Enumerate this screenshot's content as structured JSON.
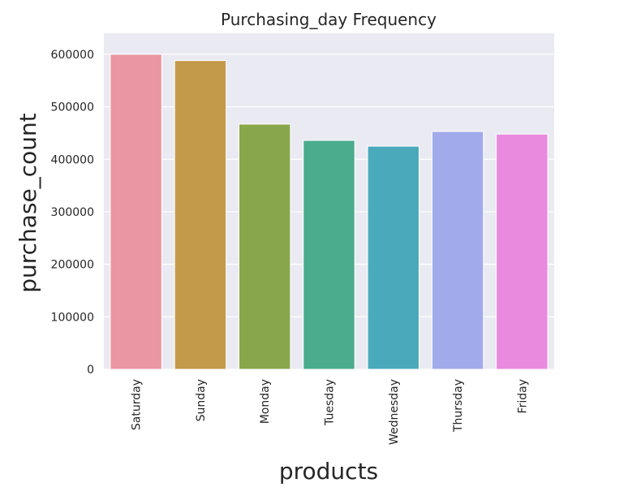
{
  "chart_data": {
    "type": "bar",
    "title": "Purchasing_day Frequency",
    "xlabel": "products",
    "ylabel": "purchase_count",
    "categories": [
      "Saturday",
      "Sunday",
      "Monday",
      "Tuesday",
      "Wednesday",
      "Thursday",
      "Friday"
    ],
    "values": [
      600000,
      588000,
      467000,
      436000,
      425000,
      453000,
      448000
    ],
    "colors": [
      "#ea96a3",
      "#c3994a",
      "#88a74a",
      "#4aac8d",
      "#4ba9bc",
      "#a1abeb",
      "#e98ade"
    ],
    "ylim": [
      0,
      640000
    ],
    "yticks": [
      0,
      100000,
      200000,
      300000,
      400000,
      500000,
      600000
    ],
    "ytick_labels": [
      "0",
      "100000",
      "200000",
      "300000",
      "400000",
      "500000",
      "600000"
    ],
    "grid": true,
    "plot_background": "#eaeaf2",
    "grid_color": "#ffffff"
  }
}
